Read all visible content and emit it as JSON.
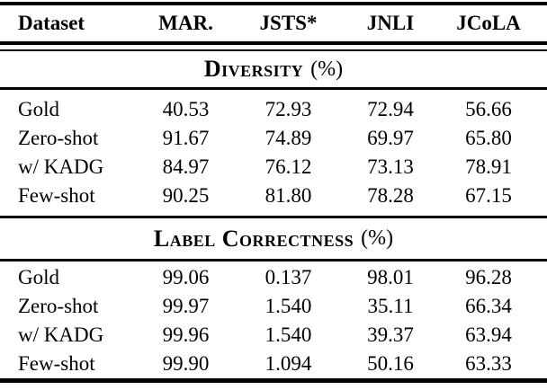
{
  "table": {
    "columns": [
      "Dataset",
      "MAR.",
      "JSTS*",
      "JNLI",
      "JCoLA"
    ],
    "sections": [
      {
        "title": "Diversity",
        "unit": "(%)",
        "rows": [
          {
            "label": "Gold",
            "values": [
              "40.53",
              "72.93",
              "72.94",
              "56.66"
            ]
          },
          {
            "label": "Zero-shot",
            "values": [
              "91.67",
              "74.89",
              "69.97",
              "65.80"
            ]
          },
          {
            "label": "w/ KADG",
            "values": [
              "84.97",
              "76.12",
              "73.13",
              "78.91"
            ]
          },
          {
            "label": "Few-shot",
            "values": [
              "90.25",
              "81.80",
              "78.28",
              "67.15"
            ]
          }
        ]
      },
      {
        "title": "Label Correctness",
        "unit": "(%)",
        "rows": [
          {
            "label": "Gold",
            "values": [
              "99.06",
              "0.137",
              "98.01",
              "96.28"
            ]
          },
          {
            "label": "Zero-shot",
            "values": [
              "99.97",
              "1.540",
              "35.11",
              "66.34"
            ]
          },
          {
            "label": "w/ KADG",
            "values": [
              "99.96",
              "1.540",
              "39.37",
              "63.94"
            ]
          },
          {
            "label": "Few-shot",
            "values": [
              "99.90",
              "1.094",
              "50.16",
              "63.33"
            ]
          }
        ]
      }
    ]
  }
}
